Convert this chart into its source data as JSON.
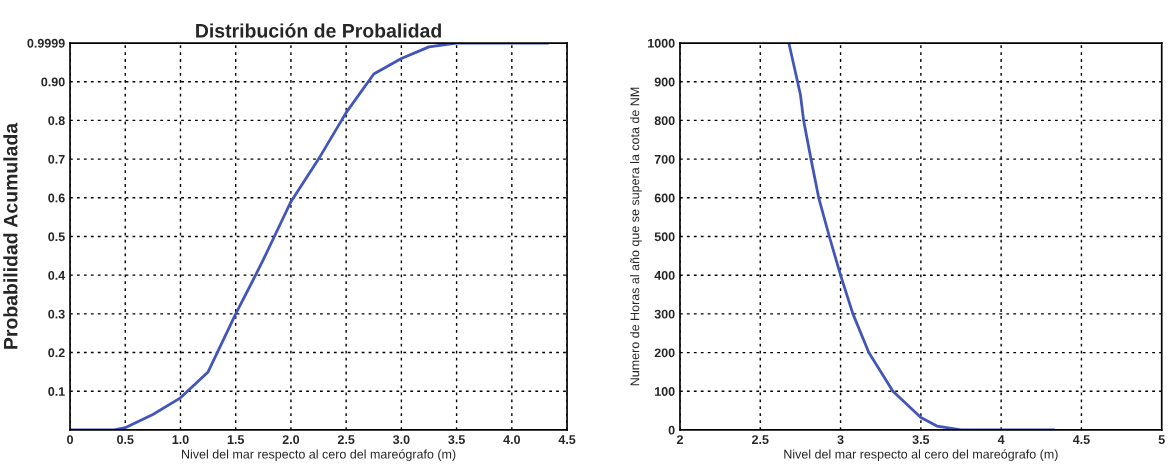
{
  "chart_data": [
    {
      "type": "line",
      "title": "Distribución de Probalidad",
      "xlabel": "Nivel del mar respecto al cero del mareógrafo (m)",
      "ylabel": "Probabilidad Acumulada",
      "x": [
        0,
        0.4,
        0.5,
        0.75,
        1.0,
        1.25,
        1.5,
        1.68,
        1.75,
        1.85,
        2.0,
        2.25,
        2.5,
        2.75,
        3.0,
        3.25,
        3.5,
        4.33
      ],
      "series": [
        {
          "color": "#4355b8",
          "values": [
            0,
            0,
            0.006,
            0.04,
            0.083,
            0.15,
            0.3,
            0.4,
            0.44,
            0.5,
            0.59,
            0.7,
            0.82,
            0.92,
            0.96,
            0.99,
            0.9999,
            0.9999
          ]
        }
      ],
      "xlim": [
        0,
        4.5
      ],
      "ylim": [
        0,
        0.9999
      ],
      "xticks": [
        0,
        0.5,
        {
          "value": 1.0,
          "label": "1.0"
        },
        1.5,
        {
          "value": 2.0,
          "label": "2.0"
        },
        2.5,
        {
          "value": 3.0,
          "label": "3.0"
        },
        3.5,
        {
          "value": 4.0,
          "label": "4.0"
        },
        4.5
      ],
      "yticks": [
        0.1,
        0.2,
        0.3,
        0.4,
        0.5,
        0.6,
        0.7,
        0.8,
        {
          "value": 0.9,
          "label": "0.90"
        },
        0.9999
      ],
      "grid": true,
      "line_style": "solid"
    },
    {
      "type": "line",
      "xlabel": "Nivel del mar respecto al cero del mareógrafo (m)",
      "ylabel": "Numero de Horas al año que se supera la cota de NM",
      "x": [
        2.678,
        2.75,
        2.77,
        2.816,
        2.864,
        2.93,
        3.0,
        3.077,
        3.176,
        3.326,
        3.5,
        3.6,
        3.75,
        4.33
      ],
      "series": [
        {
          "color": "#4355b8",
          "values": [
            1000,
            867,
            800,
            700,
            600,
            500,
            400,
            300,
            200,
            100,
            32,
            10,
            0,
            0
          ]
        }
      ],
      "xlim": [
        2,
        5
      ],
      "ylim": [
        0,
        1000
      ],
      "xticks": [
        2,
        2.5,
        3,
        3.5,
        4,
        4.5,
        5
      ],
      "yticks": [
        0,
        100,
        200,
        300,
        400,
        500,
        600,
        700,
        800,
        900,
        1000
      ],
      "grid": true,
      "line_style": "solid"
    }
  ]
}
